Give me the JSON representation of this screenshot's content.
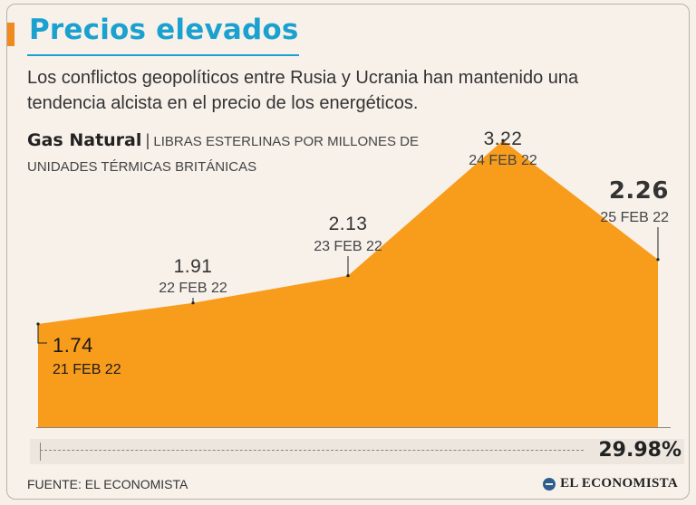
{
  "header": {
    "title": "Precios elevados",
    "subtitle": "Los conflictos geopolíticos entre Rusia y Ucrania han mantenido una tendencia alcista en el precio de los energéticos."
  },
  "series_label": {
    "name": "Gas Natural",
    "separator": "|",
    "unit": "LIBRAS ESTERLINAS POR MILLONES DE UNIDADES TÉRMICAS BRITÁNICAS"
  },
  "colors": {
    "area": "#f89c1c",
    "accent": "#f0891e",
    "title": "#1ba1cf"
  },
  "chart_data": {
    "type": "area",
    "title": "Gas Natural",
    "ylabel": "Libras esterlinas por millones de unidades térmicas británicas",
    "categories": [
      "21 FEB 22",
      "22 FEB 22",
      "23 FEB 22",
      "24 FEB 22",
      "25 FEB 22"
    ],
    "values": [
      1.74,
      1.91,
      2.13,
      3.22,
      2.26
    ],
    "value_labels": [
      "1.74",
      "1.91",
      "2.13",
      "3.22",
      "2.26"
    ],
    "highlight_last": true,
    "change_percent": "29.98%"
  },
  "footer": {
    "source": "FUENTE: EL ECONOMISTA",
    "brand": "EL ECONOMISTA"
  }
}
